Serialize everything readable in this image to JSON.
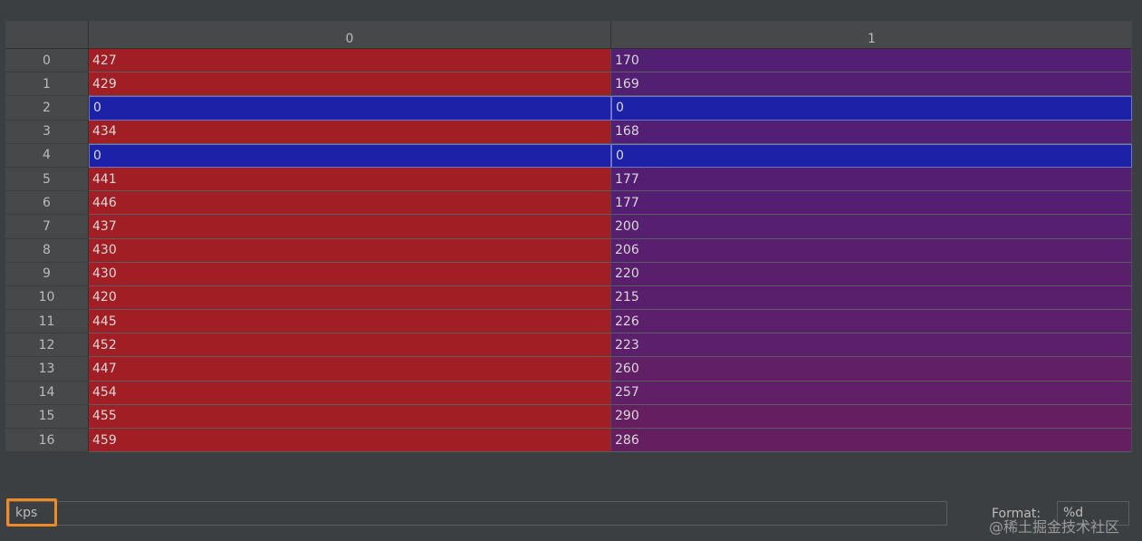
{
  "table": {
    "columns": [
      "0",
      "1"
    ],
    "rows": [
      {
        "index": "0",
        "values": [
          "427",
          "170"
        ]
      },
      {
        "index": "1",
        "values": [
          "429",
          "169"
        ]
      },
      {
        "index": "2",
        "values": [
          "0",
          "0"
        ]
      },
      {
        "index": "3",
        "values": [
          "434",
          "168"
        ]
      },
      {
        "index": "4",
        "values": [
          "0",
          "0"
        ]
      },
      {
        "index": "5",
        "values": [
          "441",
          "177"
        ]
      },
      {
        "index": "6",
        "values": [
          "446",
          "177"
        ]
      },
      {
        "index": "7",
        "values": [
          "437",
          "200"
        ]
      },
      {
        "index": "8",
        "values": [
          "430",
          "206"
        ]
      },
      {
        "index": "9",
        "values": [
          "430",
          "220"
        ]
      },
      {
        "index": "10",
        "values": [
          "420",
          "215"
        ]
      },
      {
        "index": "11",
        "values": [
          "445",
          "226"
        ]
      },
      {
        "index": "12",
        "values": [
          "452",
          "223"
        ]
      },
      {
        "index": "13",
        "values": [
          "447",
          "260"
        ]
      },
      {
        "index": "14",
        "values": [
          "454",
          "257"
        ]
      },
      {
        "index": "15",
        "values": [
          "455",
          "290"
        ]
      },
      {
        "index": "16",
        "values": [
          "459",
          "286"
        ]
      }
    ],
    "heatmap": {
      "low_color": "#1b22a8",
      "mid_color": "#521f74",
      "high_color": "#a11e25",
      "min": 0,
      "max": 459
    }
  },
  "footer": {
    "slice_value": "kps",
    "highlight_color": "#f08a24",
    "format_label": "Format:",
    "format_value": "%d"
  },
  "watermark": "@稀土掘金技术社区"
}
